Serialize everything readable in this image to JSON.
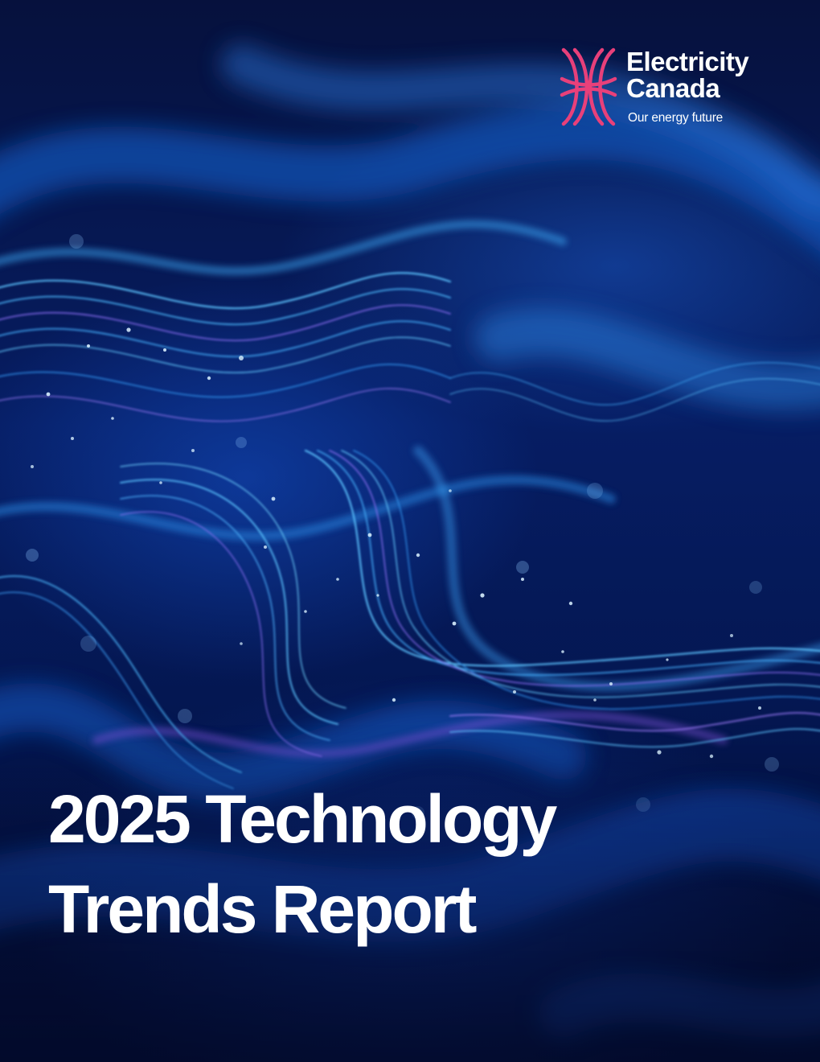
{
  "logo": {
    "name_line1": "Electricity",
    "name_line2": "Canada",
    "tagline": "Our energy future",
    "mark_color": "#e8407a"
  },
  "cover": {
    "title_line1": "2025 Technology",
    "title_line2": "Trends Report"
  },
  "background": {
    "image": "abstract-light-waves-icon",
    "colors": [
      "#030a2a",
      "#0a3bb0",
      "#1f8fe0",
      "#7a4fd6"
    ]
  }
}
